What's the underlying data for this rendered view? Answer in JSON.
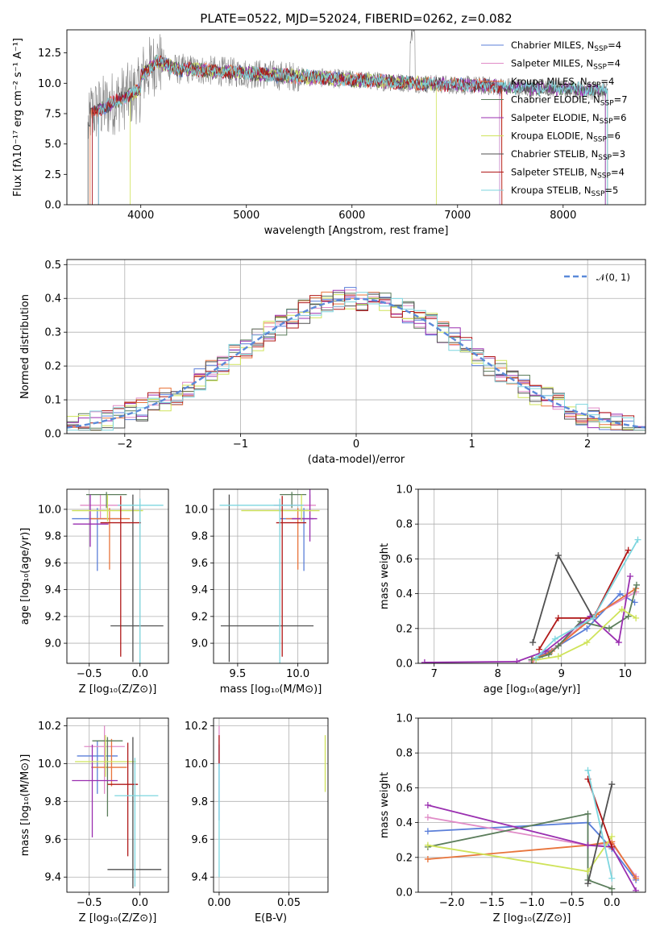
{
  "chart_data": [
    {
      "id": "spectrum",
      "type": "line",
      "title": "PLATE=0522, MJD=52024, FIBERID=0262, z=0.082",
      "xlabel": "wavelength [Angstrom, rest frame]",
      "ylabel": "Flux [fλ10⁻¹⁷ erg cm⁻² s⁻¹ A⁻¹]",
      "xlim": [
        3300,
        8780
      ],
      "ylim": [
        0,
        14.4
      ],
      "xticks": [
        4000,
        5000,
        6000,
        7000,
        8000
      ],
      "yticks": [
        0.0,
        2.5,
        5.0,
        7.5,
        10.0,
        12.5
      ],
      "legend_position": "upper-right",
      "data_color": "#808080",
      "series": [
        {
          "name": "Chabrier MILES, N_SSP=4",
          "label_html": "Chabrier MILES, N<tspan font-size='9' dy='3'>SSP</tspan><tspan dy='-3'>=4</tspan>",
          "color": "#5b7fd9"
        },
        {
          "name": "Salpeter MILES, N_SSP=4",
          "label_html": "Salpeter MILES, N<tspan font-size='9' dy='3'>SSP</tspan><tspan dy='-3'>=4</tspan>",
          "color": "#e08bc7"
        },
        {
          "name": "Kroupa MILES, N_SSP=4",
          "label_html": "Kroupa MILES, N<tspan font-size='9' dy='3'>SSP</tspan><tspan dy='-3'>=4</tspan>",
          "color": "#e8743b"
        },
        {
          "name": "Chabrier ELODIE, N_SSP=7",
          "label_html": "Chabrier ELODIE, N<tspan font-size='9' dy='3'>SSP</tspan><tspan dy='-3'>=7</tspan>",
          "color": "#5b7d5b"
        },
        {
          "name": "Salpeter ELODIE, N_SSP=6",
          "label_html": "Salpeter ELODIE, N<tspan font-size='9' dy='3'>SSP</tspan><tspan dy='-3'>=6</tspan>",
          "color": "#9a2fb0"
        },
        {
          "name": "Kroupa ELODIE, N_SSP=6",
          "label_html": "Kroupa ELODIE, N<tspan font-size='9' dy='3'>SSP</tspan><tspan dy='-3'>=6</tspan>",
          "color": "#cfe35a"
        },
        {
          "name": "Chabrier STELIB, N_SSP=3",
          "label_html": "Chabrier STELIB, N<tspan font-size='9' dy='3'>SSP</tspan><tspan dy='-3'>=3</tspan>",
          "color": "#505050"
        },
        {
          "name": "Salpeter STELIB, N_SSP=4",
          "label_html": "Salpeter STELIB, N<tspan font-size='9' dy='3'>SSP</tspan><tspan dy='-3'>=4</tspan>",
          "color": "#b01818"
        },
        {
          "name": "Kroupa STELIB, N_SSP=5",
          "label_html": "Kroupa STELIB, N<tspan font-size='9' dy='3'>SSP</tspan><tspan dy='-3'>=5</tspan>",
          "color": "#7ed6df"
        }
      ]
    },
    {
      "id": "residuals",
      "type": "line",
      "xlabel": "(data-model)/error",
      "ylabel": "Normed distribution",
      "xlim": [
        -2.5,
        2.5
      ],
      "ylim": [
        0,
        0.515
      ],
      "xticks": [
        -2,
        -1,
        0,
        1,
        2
      ],
      "yticks": [
        0.0,
        0.1,
        0.2,
        0.3,
        0.4,
        0.5
      ],
      "legend": "𝒩(0, 1)",
      "gaussian_color": "#5b8ad9",
      "grid": true
    },
    {
      "id": "age_vs_Z",
      "type": "scatter",
      "xlabel": "Z [log₁₀(Z/Z⊙)]",
      "ylabel": "age  [log₁₀(age/yr)]",
      "xlim": [
        -0.72,
        0.28
      ],
      "ylim": [
        8.85,
        10.15
      ],
      "xticks": [
        -0.5,
        0.0
      ],
      "yticks": [
        9.0,
        9.2,
        9.4,
        9.6,
        9.8,
        10.0
      ],
      "grid": true,
      "points": [
        {
          "x": -0.42,
          "y": 9.93,
          "xerr": [
            0.25,
            0.22
          ],
          "yerr": [
            0.39,
            0.08
          ],
          "series": 0
        },
        {
          "x": -0.39,
          "y": 10.03,
          "xerr": [
            0.2,
            0.2
          ],
          "yerr": [
            0.1,
            0.08
          ],
          "series": 1
        },
        {
          "x": -0.3,
          "y": 9.93,
          "xerr": [
            0.2,
            0.2
          ],
          "yerr": [
            0.38,
            0.08
          ],
          "series": 2
        },
        {
          "x": -0.33,
          "y": 10.11,
          "xerr": [
            0.2,
            0.2
          ],
          "yerr": [
            0.1,
            0.02
          ],
          "series": 3
        },
        {
          "x": -0.49,
          "y": 9.89,
          "xerr": [
            0.17,
            0.18
          ],
          "yerr": [
            0.17,
            0.22
          ],
          "series": 4
        },
        {
          "x": -0.32,
          "y": 9.99,
          "xerr": [
            0.35,
            0.35
          ],
          "yerr": [
            0.08,
            0.12
          ],
          "series": 5
        },
        {
          "x": -0.07,
          "y": 9.13,
          "xerr": [
            0.22,
            0.3
          ],
          "yerr": [
            0.27,
            0.98
          ],
          "series": 6
        },
        {
          "x": -0.19,
          "y": 9.9,
          "xerr": [
            0.2,
            0.2
          ],
          "yerr": [
            1.0,
            0.2
          ],
          "series": 7
        },
        {
          "x": 0.0,
          "y": 10.03,
          "xerr": [
            0.22,
            0.23
          ],
          "yerr": [
            1.2,
            0.05
          ],
          "series": 8
        }
      ]
    },
    {
      "id": "age_vs_mass",
      "type": "scatter",
      "xlabel": "mass [log₁₀(M/M⊙)]",
      "ylabel": "",
      "xlim": [
        9.3,
        10.25
      ],
      "ylim": [
        8.85,
        10.15
      ],
      "xticks": [
        9.5,
        10.0
      ],
      "yticks": [
        9.0,
        9.2,
        9.4,
        9.6,
        9.8,
        10.0
      ],
      "grid": true,
      "points": [
        {
          "x": 10.05,
          "y": 9.93,
          "xerr": [
            0.2,
            0.08
          ],
          "yerr": [
            0.39,
            0.08
          ],
          "series": 0
        },
        {
          "x": 10.1,
          "y": 10.03,
          "xerr": [
            0.3,
            0.05
          ],
          "yerr": [
            0.1,
            0.08
          ],
          "series": 1
        },
        {
          "x": 10.0,
          "y": 9.93,
          "xerr": [
            0.1,
            0.05
          ],
          "yerr": [
            0.38,
            0.08
          ],
          "series": 2
        },
        {
          "x": 9.95,
          "y": 10.11,
          "xerr": [
            0.1,
            0.12
          ],
          "yerr": [
            0.1,
            0.02
          ],
          "series": 3
        },
        {
          "x": 10.1,
          "y": 9.93,
          "xerr": [
            0.15,
            0.06
          ],
          "yerr": [
            0.17,
            0.22
          ],
          "series": 4
        },
        {
          "x": 10.03,
          "y": 9.99,
          "xerr": [
            0.5,
            0.15
          ],
          "yerr": [
            0.08,
            0.12
          ],
          "series": 5
        },
        {
          "x": 9.43,
          "y": 9.13,
          "xerr": [
            0.07,
            0.7
          ],
          "yerr": [
            0.27,
            0.98
          ],
          "series": 6
        },
        {
          "x": 9.87,
          "y": 9.9,
          "xerr": [
            0.05,
            0.2
          ],
          "yerr": [
            1.0,
            0.2
          ],
          "series": 7
        },
        {
          "x": 9.85,
          "y": 10.03,
          "xerr": [
            0.5,
            0.2
          ],
          "yerr": [
            1.2,
            0.05
          ],
          "series": 8
        }
      ]
    },
    {
      "id": "weight_vs_age",
      "type": "line",
      "xlabel": "age  [log₁₀(age/yr)]",
      "ylabel": "mass weight",
      "xlim": [
        6.75,
        10.32
      ],
      "ylim": [
        0,
        1.0
      ],
      "xticks": [
        7,
        8,
        9,
        10
      ],
      "yticks": [
        0.0,
        0.2,
        0.4,
        0.6,
        0.8,
        1.0
      ],
      "grid": true,
      "series": [
        {
          "x": [
            8.53,
            8.7,
            8.95,
            9.4,
            9.92,
            10.15
          ],
          "y": [
            0.02,
            0.05,
            0.1,
            0.2,
            0.4,
            0.35
          ],
          "s": 0
        },
        {
          "x": [
            8.53,
            8.8,
            9.53,
            10.17
          ],
          "y": [
            0.01,
            0.06,
            0.28,
            0.41
          ],
          "s": 1
        },
        {
          "x": [
            8.55,
            8.85,
            9.55,
            10.17
          ],
          "y": [
            0.02,
            0.07,
            0.28,
            0.43
          ],
          "s": 2
        },
        {
          "x": [
            8.53,
            8.8,
            8.95,
            9.3,
            9.75,
            10.05,
            10.18
          ],
          "y": [
            0.02,
            0.05,
            0.1,
            0.24,
            0.2,
            0.27,
            0.45
          ],
          "s": 3
        },
        {
          "x": [
            6.85,
            8.3,
            8.75,
            9.45,
            9.9,
            10.08
          ],
          "y": [
            0.005,
            0.01,
            0.07,
            0.27,
            0.12,
            0.5
          ],
          "s": 4
        },
        {
          "x": [
            8.6,
            8.95,
            9.4,
            9.95,
            10.17
          ],
          "y": [
            0.02,
            0.04,
            0.12,
            0.31,
            0.26
          ],
          "s": 5
        },
        {
          "x": [
            8.55,
            8.95,
            9.5
          ],
          "y": [
            0.12,
            0.62,
            0.26
          ],
          "s": 6
        },
        {
          "x": [
            8.65,
            8.95,
            9.5,
            10.05
          ],
          "y": [
            0.08,
            0.26,
            0.26,
            0.65
          ],
          "s": 7
        },
        {
          "x": [
            8.6,
            8.9,
            9.5,
            10.2
          ],
          "y": [
            0.03,
            0.14,
            0.26,
            0.71
          ],
          "s": 8
        }
      ]
    },
    {
      "id": "mass_vs_Z",
      "type": "scatter",
      "xlabel": "Z [log₁₀(Z/Z⊙)]",
      "ylabel": "mass [log₁₀(M/M⊙)]",
      "xlim": [
        -0.72,
        0.28
      ],
      "ylim": [
        9.32,
        10.24
      ],
      "xticks": [
        -0.5,
        0.0
      ],
      "yticks": [
        9.4,
        9.6,
        9.8,
        10.0,
        10.2
      ],
      "grid": true,
      "points": [
        {
          "x": -0.42,
          "y": 10.04,
          "xerr": [
            0.2,
            0.2
          ],
          "yerr": [
            0.2,
            0.08
          ],
          "series": 0
        },
        {
          "x": -0.35,
          "y": 10.09,
          "xerr": [
            0.2,
            0.2
          ],
          "yerr": [
            0.25,
            0.11
          ],
          "series": 1
        },
        {
          "x": -0.28,
          "y": 9.98,
          "xerr": [
            0.2,
            0.15
          ],
          "yerr": [
            0.1,
            0.15
          ],
          "series": 2
        },
        {
          "x": -0.32,
          "y": 10.12,
          "xerr": [
            0.15,
            0.15
          ],
          "yerr": [
            0.4,
            0.02
          ],
          "series": 3
        },
        {
          "x": -0.47,
          "y": 9.91,
          "xerr": [
            0.2,
            0.25
          ],
          "yerr": [
            0.3,
            0.19
          ],
          "series": 4
        },
        {
          "x": -0.34,
          "y": 10.01,
          "xerr": [
            0.3,
            0.3
          ],
          "yerr": [
            0.08,
            0.14
          ],
          "series": 5
        },
        {
          "x": -0.07,
          "y": 9.44,
          "xerr": [
            0.25,
            0.28
          ],
          "yerr": [
            0.1,
            0.7
          ],
          "series": 6
        },
        {
          "x": -0.12,
          "y": 9.89,
          "xerr": [
            0.2,
            0.1
          ],
          "yerr": [
            0.38,
            0.22
          ],
          "series": 7
        },
        {
          "x": -0.05,
          "y": 9.83,
          "xerr": [
            0.2,
            0.23
          ],
          "yerr": [
            0.48,
            0.2
          ],
          "series": 8
        }
      ]
    },
    {
      "id": "mass_vs_ebv",
      "type": "scatter",
      "xlabel": "E(B-V)",
      "ylabel": "",
      "xlim": [
        -0.004,
        0.078
      ],
      "ylim": [
        9.32,
        10.24
      ],
      "xticks": [
        0.0,
        0.05
      ],
      "yticks": [
        9.4,
        9.6,
        9.8,
        10.0,
        10.2
      ],
      "grid": true,
      "points": [
        {
          "x": 0.0,
          "y": 10.1,
          "yerr": [
            0.1,
            0.1
          ],
          "series": 1
        },
        {
          "x": 0.0,
          "y": 10.0,
          "yerr": [
            0.3,
            0.1
          ],
          "series": 0
        },
        {
          "x": 0.0,
          "y": 10.1,
          "yerr": [
            0.1,
            0.05
          ],
          "series": 7
        },
        {
          "x": 0.0,
          "y": 9.9,
          "yerr": [
            0.5,
            0.1
          ],
          "series": 8
        },
        {
          "x": 0.076,
          "y": 10.0,
          "yerr": [
            0.15,
            0.15
          ],
          "series": 5
        }
      ]
    },
    {
      "id": "weight_vs_Z",
      "type": "line",
      "xlabel": "Z [log₁₀(Z/Z⊙)]",
      "ylabel": "mass weight",
      "xlim": [
        -2.42,
        0.42
      ],
      "ylim": [
        0,
        1.0
      ],
      "xticks": [
        -2.0,
        -1.5,
        -1.0,
        -0.5,
        0.0
      ],
      "yticks": [
        0.0,
        0.2,
        0.4,
        0.6,
        0.8,
        1.0
      ],
      "grid": true,
      "series": [
        {
          "x": [
            -2.3,
            -0.3,
            0.0,
            0.3
          ],
          "y": [
            0.35,
            0.4,
            0.25,
            0.07
          ],
          "s": 0
        },
        {
          "x": [
            -2.3,
            -0.3,
            0.0,
            0.3
          ],
          "y": [
            0.43,
            0.27,
            0.28,
            0.09
          ],
          "s": 1
        },
        {
          "x": [
            -2.3,
            -0.3,
            0.0,
            0.3
          ],
          "y": [
            0.19,
            0.27,
            0.29,
            0.08
          ],
          "s": 2
        },
        {
          "x": [
            -2.3,
            -0.3,
            -0.3,
            0.0
          ],
          "y": [
            0.26,
            0.45,
            0.07,
            0.02
          ],
          "s": 3
        },
        {
          "x": [
            -2.3,
            -0.3,
            0.0,
            0.3
          ],
          "y": [
            0.5,
            0.27,
            0.26,
            0.01
          ],
          "s": 4
        },
        {
          "x": [
            -2.3,
            -0.3,
            0.0
          ],
          "y": [
            0.27,
            0.12,
            0.32
          ],
          "s": 5
        },
        {
          "x": [
            -0.3,
            0.0
          ],
          "y": [
            0.05,
            0.62
          ],
          "s": 6
        },
        {
          "x": [
            -0.3,
            0.0
          ],
          "y": [
            0.65,
            0.26
          ],
          "s": 7
        },
        {
          "x": [
            -0.3,
            0.0
          ],
          "y": [
            0.7,
            0.08
          ],
          "s": 8
        }
      ]
    }
  ]
}
